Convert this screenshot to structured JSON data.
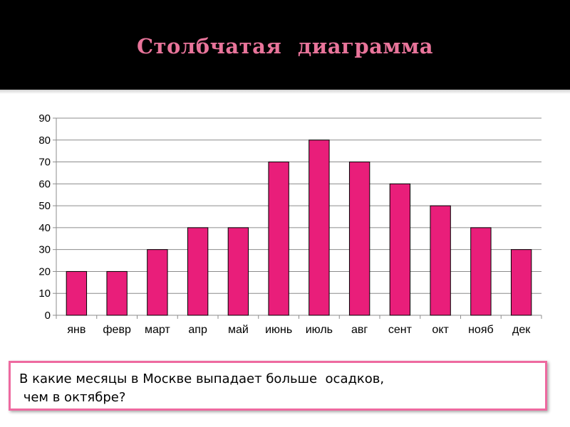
{
  "slide": {
    "title": "Столбчатая   диаграмма",
    "question_line1": "В какие месяцы в Москве выпадает больше  осадков,",
    "question_line2": " чем в октябре?"
  },
  "chart_data": {
    "type": "bar",
    "categories": [
      "янв",
      "февр",
      "март",
      "апр",
      "май",
      "июнь",
      "июль",
      "авг",
      "сент",
      "окт",
      "нояб",
      "дек"
    ],
    "values": [
      20,
      20,
      30,
      40,
      40,
      70,
      80,
      70,
      60,
      50,
      40,
      30
    ],
    "yticks": [
      "0",
      "10",
      "20",
      "30",
      "40",
      "50",
      "60",
      "70",
      "80",
      "90"
    ],
    "ylim": [
      0,
      90
    ],
    "grid": true,
    "legend": "none",
    "colors": {
      "bar": "#e91e7a",
      "bar_outline": "#000000",
      "grid": "#8c8c8c",
      "title": "#e8749a",
      "title_background": "#000000",
      "box_border": "#ee6aa0"
    }
  }
}
